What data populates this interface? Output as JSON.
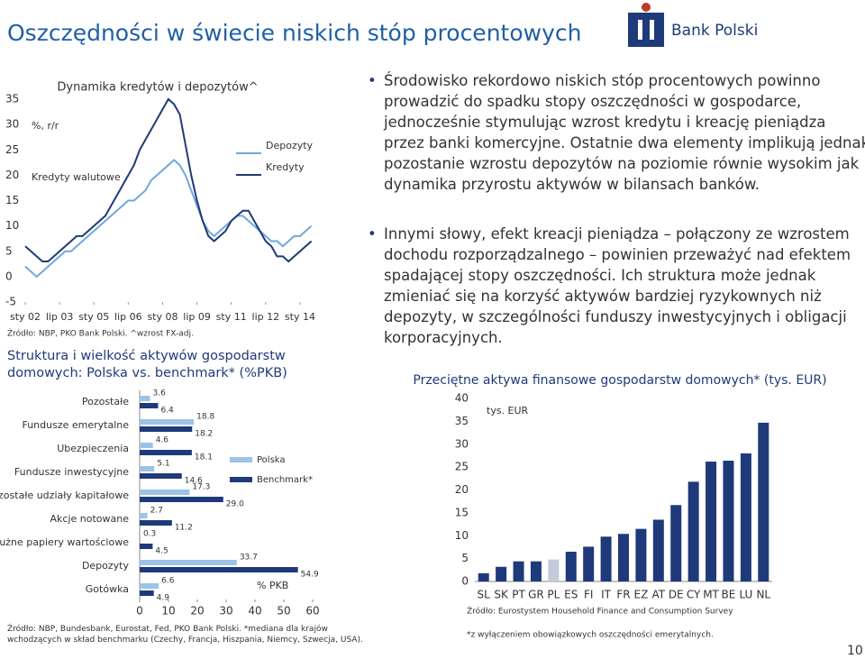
{
  "header": {
    "title": "Oszczędności w świecie niskich stóp procentowych",
    "logo_text": "Bank Polski"
  },
  "bullets": [
    "Środowisko rekordowo niskich stóp procentowych powinno prowadzić do spadku stopy oszczędności w gospodarce, jednocześnie stymulując wzrost kredytu i kreację pieniądza przez banki komercyjne. Ostatnie dwa elementy implikują jednak pozostanie wzrostu depozytów na poziomie równie wysokim jak dynamika przyrostu aktywów w bilansach banków.",
    "Innymi słowy, efekt kreacji pieniądza – połączony ze wzrostem dochodu rozporządzalnego – powinien przeważyć nad efektem spadającej stopy oszczędności. Ich struktura może jednak zmieniać się na korzyść aktywów bardziej ryzykownych niż depozyty, w szczególności funduszy inwestycyjnych i obligacji korporacyjnych."
  ],
  "page_number": "10",
  "chart_data": [
    {
      "type": "line",
      "title": "Dynamika kredytów i depozytów^",
      "y_label": "%, r/r",
      "annotation": "Kredyty walutowe",
      "x": [
        2002,
        2002.25,
        2002.5,
        2002.75,
        2003,
        2003.25,
        2003.5,
        2003.75,
        2004,
        2004.25,
        2004.5,
        2004.75,
        2005,
        2005.25,
        2005.5,
        2005.75,
        2006,
        2006.25,
        2006.5,
        2006.75,
        2007,
        2007.25,
        2007.5,
        2007.75,
        2008,
        2008.25,
        2008.5,
        2008.75,
        2009,
        2009.25,
        2009.5,
        2009.75,
        2010,
        2010.25,
        2010.5,
        2010.75,
        2011,
        2011.25,
        2011.5,
        2011.75,
        2012,
        2012.25,
        2012.5,
        2012.75,
        2013,
        2013.25,
        2013.5,
        2013.75,
        2014,
        2014.25,
        2014.5
      ],
      "xlim": [
        2002,
        2014.75
      ],
      "xticks": [
        {
          "value": 2002,
          "label": "sty 02"
        },
        {
          "value": 2003.5,
          "label": "lip 03"
        },
        {
          "value": 2005,
          "label": "sty 05"
        },
        {
          "value": 2006.5,
          "label": "lip 06"
        },
        {
          "value": 2008,
          "label": "sty 08"
        },
        {
          "value": 2009.5,
          "label": "lip 09"
        },
        {
          "value": 2011,
          "label": "sty 11"
        },
        {
          "value": 2012.5,
          "label": "lip 12"
        },
        {
          "value": 2014,
          "label": "sty 14"
        }
      ],
      "ylim": [
        -5,
        35
      ],
      "yticks": [
        35,
        30,
        25,
        20,
        15,
        10,
        5,
        0,
        -5
      ],
      "series": [
        {
          "name": "Depozyty",
          "color": "#6fa8dc",
          "values": [
            2,
            1,
            0,
            1,
            2,
            3,
            4,
            5,
            5,
            6,
            7,
            8,
            9,
            10,
            11,
            12,
            13,
            14,
            15,
            15,
            16,
            17,
            19,
            20,
            21,
            22,
            23,
            22,
            20,
            17,
            14,
            11,
            9,
            8,
            9,
            10,
            11,
            12,
            12,
            11,
            10,
            9,
            8,
            7,
            7,
            6,
            7,
            8,
            8,
            9,
            10
          ]
        },
        {
          "name": "Kredyty",
          "color": "#1f3a7a",
          "values": [
            6,
            5,
            4,
            3,
            3,
            4,
            5,
            6,
            7,
            8,
            8,
            9,
            10,
            11,
            12,
            14,
            16,
            18,
            20,
            22,
            25,
            27,
            29,
            31,
            33,
            35,
            34,
            32,
            26,
            20,
            15,
            11,
            8,
            7,
            8,
            9,
            11,
            12,
            13,
            13,
            11,
            9,
            7,
            6,
            4,
            4,
            3,
            4,
            5,
            6,
            7
          ]
        }
      ],
      "source": "Źródło: NBP, PKO Bank Polski. ^wzrost  FX-adj."
    },
    {
      "type": "hbar",
      "title": "Struktura i wielkość aktywów gospodarstw domowych: Polska vs. benchmark* (%PKB)",
      "x_label": "% PKB",
      "categories": [
        "Pozostałe",
        "Fundusze emerytalne",
        "Ubezpieczenia",
        "Fundusze inwestycyjne",
        "Pozostałe udziały kapitałowe",
        "Akcje notowane",
        "Dłużne papiery wartościowe",
        "Depozyty",
        "Gotówka"
      ],
      "series": [
        {
          "name": "Polska",
          "color": "#9dc3e6",
          "values": [
            3.6,
            18.8,
            4.6,
            5.1,
            17.3,
            2.7,
            0.3,
            33.7,
            6.6
          ]
        },
        {
          "name": "Benchmark*",
          "color": "#1f3a7a",
          "values": [
            6.4,
            18.2,
            18.1,
            14.6,
            29.0,
            11.2,
            4.5,
            54.9,
            4.9
          ],
          "value_labels": [
            "6.4",
            "18.2",
            "18.1",
            "14.6",
            "29.0",
            "11.2",
            "4.5",
            "54.9",
            "4.9"
          ]
        }
      ],
      "xlim": [
        0,
        60
      ],
      "xticks": [
        0,
        10,
        20,
        30,
        40,
        50,
        60
      ],
      "source": "Źródło: NBP, Bundesbank, Eurostat, Fed, PKO Bank Polski. *mediana dla krajów wchodzących w skład benchmarku (Czechy, Francja, Hiszpania, Niemcy, Szwecja, USA)."
    },
    {
      "type": "bar",
      "title": "Przeciętne aktywa finansowe gospodarstw domowych* (tys. EUR)",
      "y_label": "tys. EUR",
      "categories": [
        "SL",
        "SK",
        "PT",
        "GR",
        "PL",
        "ES",
        "FI",
        "IT",
        "FR",
        "EZ",
        "AT",
        "DE",
        "CY",
        "MT",
        "BE",
        "LU",
        "NL"
      ],
      "values": [
        1.8,
        3.2,
        4.4,
        4.4,
        4.8,
        6.5,
        7.6,
        9.8,
        10.4,
        11.5,
        13.5,
        16.7,
        21.8,
        26.2,
        26.4,
        28.0,
        34.7
      ],
      "colors": [
        "#1f3a7a",
        "#1f3a7a",
        "#1f3a7a",
        "#1f3a7a",
        "#c5c9dc",
        "#1f3a7a",
        "#1f3a7a",
        "#1f3a7a",
        "#1f3a7a",
        "#1f3a7a",
        "#1f3a7a",
        "#1f3a7a",
        "#1f3a7a",
        "#1f3a7a",
        "#1f3a7a",
        "#1f3a7a",
        "#1f3a7a"
      ],
      "ylim": [
        0,
        40
      ],
      "yticks": [
        0,
        5,
        10,
        15,
        20,
        25,
        30,
        35,
        40
      ],
      "source": "Źródło: Eurostystem Household Finance and Consumption Survey",
      "note": "*z wyłączeniem obowiązkowych oszczędności emerytalnych."
    }
  ]
}
